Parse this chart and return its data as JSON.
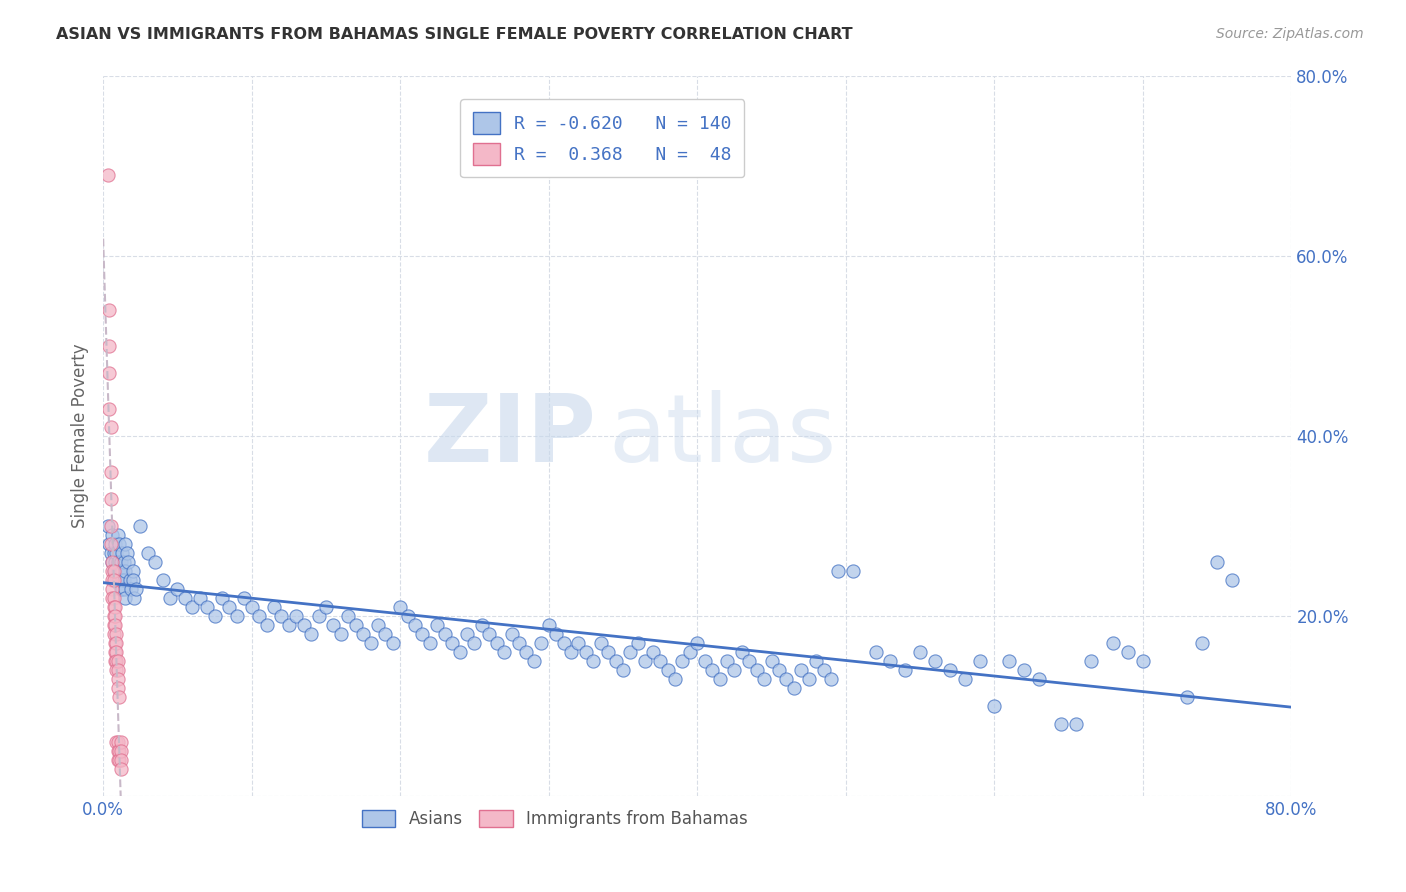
{
  "title": "ASIAN VS IMMIGRANTS FROM BAHAMAS SINGLE FEMALE POVERTY CORRELATION CHART",
  "source": "Source: ZipAtlas.com",
  "ylabel": "Single Female Poverty",
  "xlim": [
    0.0,
    0.8
  ],
  "ylim": [
    0.0,
    0.8
  ],
  "watermark_zip": "ZIP",
  "watermark_atlas": "atlas",
  "background_color": "#ffffff",
  "grid_color": "#d8dde6",
  "asian_scatter_color": "#aec6e8",
  "asian_edge_color": "#4472c4",
  "bahamas_scatter_color": "#f4b8c8",
  "bahamas_edge_color": "#e07090",
  "trendline_asian_color": "#4472c4",
  "trendline_bahamas_color": "#c8b8c8",
  "legend_color1": "#aec6e8",
  "legend_color2": "#f4b8c8",
  "legend_edge1": "#4472c4",
  "legend_edge2": "#e07090",
  "legend_text_color": "#4472c4",
  "tick_color": "#4472c4",
  "ylabel_color": "#666666",
  "title_color": "#333333",
  "source_color": "#999999",
  "bottom_legend_color": "#555555",
  "asian_points": [
    [
      0.003,
      0.3
    ],
    [
      0.004,
      0.28
    ],
    [
      0.005,
      0.27
    ],
    [
      0.006,
      0.29
    ],
    [
      0.006,
      0.26
    ],
    [
      0.007,
      0.27
    ],
    [
      0.007,
      0.25
    ],
    [
      0.008,
      0.28
    ],
    [
      0.008,
      0.26
    ],
    [
      0.008,
      0.25
    ],
    [
      0.009,
      0.27
    ],
    [
      0.009,
      0.24
    ],
    [
      0.01,
      0.29
    ],
    [
      0.01,
      0.26
    ],
    [
      0.01,
      0.25
    ],
    [
      0.01,
      0.24
    ],
    [
      0.011,
      0.28
    ],
    [
      0.011,
      0.25
    ],
    [
      0.011,
      0.24
    ],
    [
      0.012,
      0.26
    ],
    [
      0.012,
      0.25
    ],
    [
      0.012,
      0.23
    ],
    [
      0.013,
      0.27
    ],
    [
      0.013,
      0.25
    ],
    [
      0.013,
      0.24
    ],
    [
      0.013,
      0.23
    ],
    [
      0.014,
      0.26
    ],
    [
      0.014,
      0.24
    ],
    [
      0.015,
      0.28
    ],
    [
      0.015,
      0.25
    ],
    [
      0.015,
      0.23
    ],
    [
      0.015,
      0.22
    ],
    [
      0.016,
      0.27
    ],
    [
      0.017,
      0.26
    ],
    [
      0.018,
      0.24
    ],
    [
      0.019,
      0.23
    ],
    [
      0.02,
      0.25
    ],
    [
      0.02,
      0.24
    ],
    [
      0.021,
      0.22
    ],
    [
      0.022,
      0.23
    ],
    [
      0.025,
      0.3
    ],
    [
      0.03,
      0.27
    ],
    [
      0.035,
      0.26
    ],
    [
      0.04,
      0.24
    ],
    [
      0.045,
      0.22
    ],
    [
      0.05,
      0.23
    ],
    [
      0.055,
      0.22
    ],
    [
      0.06,
      0.21
    ],
    [
      0.065,
      0.22
    ],
    [
      0.07,
      0.21
    ],
    [
      0.075,
      0.2
    ],
    [
      0.08,
      0.22
    ],
    [
      0.085,
      0.21
    ],
    [
      0.09,
      0.2
    ],
    [
      0.095,
      0.22
    ],
    [
      0.1,
      0.21
    ],
    [
      0.105,
      0.2
    ],
    [
      0.11,
      0.19
    ],
    [
      0.115,
      0.21
    ],
    [
      0.12,
      0.2
    ],
    [
      0.125,
      0.19
    ],
    [
      0.13,
      0.2
    ],
    [
      0.135,
      0.19
    ],
    [
      0.14,
      0.18
    ],
    [
      0.145,
      0.2
    ],
    [
      0.15,
      0.21
    ],
    [
      0.155,
      0.19
    ],
    [
      0.16,
      0.18
    ],
    [
      0.165,
      0.2
    ],
    [
      0.17,
      0.19
    ],
    [
      0.175,
      0.18
    ],
    [
      0.18,
      0.17
    ],
    [
      0.185,
      0.19
    ],
    [
      0.19,
      0.18
    ],
    [
      0.195,
      0.17
    ],
    [
      0.2,
      0.21
    ],
    [
      0.205,
      0.2
    ],
    [
      0.21,
      0.19
    ],
    [
      0.215,
      0.18
    ],
    [
      0.22,
      0.17
    ],
    [
      0.225,
      0.19
    ],
    [
      0.23,
      0.18
    ],
    [
      0.235,
      0.17
    ],
    [
      0.24,
      0.16
    ],
    [
      0.245,
      0.18
    ],
    [
      0.25,
      0.17
    ],
    [
      0.255,
      0.19
    ],
    [
      0.26,
      0.18
    ],
    [
      0.265,
      0.17
    ],
    [
      0.27,
      0.16
    ],
    [
      0.275,
      0.18
    ],
    [
      0.28,
      0.17
    ],
    [
      0.285,
      0.16
    ],
    [
      0.29,
      0.15
    ],
    [
      0.295,
      0.17
    ],
    [
      0.3,
      0.19
    ],
    [
      0.305,
      0.18
    ],
    [
      0.31,
      0.17
    ],
    [
      0.315,
      0.16
    ],
    [
      0.32,
      0.17
    ],
    [
      0.325,
      0.16
    ],
    [
      0.33,
      0.15
    ],
    [
      0.335,
      0.17
    ],
    [
      0.34,
      0.16
    ],
    [
      0.345,
      0.15
    ],
    [
      0.35,
      0.14
    ],
    [
      0.355,
      0.16
    ],
    [
      0.36,
      0.17
    ],
    [
      0.365,
      0.15
    ],
    [
      0.37,
      0.16
    ],
    [
      0.375,
      0.15
    ],
    [
      0.38,
      0.14
    ],
    [
      0.385,
      0.13
    ],
    [
      0.39,
      0.15
    ],
    [
      0.395,
      0.16
    ],
    [
      0.4,
      0.17
    ],
    [
      0.405,
      0.15
    ],
    [
      0.41,
      0.14
    ],
    [
      0.415,
      0.13
    ],
    [
      0.42,
      0.15
    ],
    [
      0.425,
      0.14
    ],
    [
      0.43,
      0.16
    ],
    [
      0.435,
      0.15
    ],
    [
      0.44,
      0.14
    ],
    [
      0.445,
      0.13
    ],
    [
      0.45,
      0.15
    ],
    [
      0.455,
      0.14
    ],
    [
      0.46,
      0.13
    ],
    [
      0.465,
      0.12
    ],
    [
      0.47,
      0.14
    ],
    [
      0.475,
      0.13
    ],
    [
      0.48,
      0.15
    ],
    [
      0.485,
      0.14
    ],
    [
      0.49,
      0.13
    ],
    [
      0.495,
      0.25
    ],
    [
      0.505,
      0.25
    ],
    [
      0.52,
      0.16
    ],
    [
      0.53,
      0.15
    ],
    [
      0.54,
      0.14
    ],
    [
      0.55,
      0.16
    ],
    [
      0.56,
      0.15
    ],
    [
      0.57,
      0.14
    ],
    [
      0.58,
      0.13
    ],
    [
      0.59,
      0.15
    ],
    [
      0.6,
      0.1
    ],
    [
      0.61,
      0.15
    ],
    [
      0.62,
      0.14
    ],
    [
      0.63,
      0.13
    ],
    [
      0.645,
      0.08
    ],
    [
      0.655,
      0.08
    ],
    [
      0.665,
      0.15
    ],
    [
      0.68,
      0.17
    ],
    [
      0.69,
      0.16
    ],
    [
      0.7,
      0.15
    ],
    [
      0.73,
      0.11
    ],
    [
      0.74,
      0.17
    ],
    [
      0.75,
      0.26
    ],
    [
      0.76,
      0.24
    ]
  ],
  "bahamas_points": [
    [
      0.003,
      0.69
    ],
    [
      0.004,
      0.54
    ],
    [
      0.004,
      0.5
    ],
    [
      0.004,
      0.47
    ],
    [
      0.004,
      0.43
    ],
    [
      0.005,
      0.41
    ],
    [
      0.005,
      0.36
    ],
    [
      0.005,
      0.33
    ],
    [
      0.005,
      0.3
    ],
    [
      0.005,
      0.28
    ],
    [
      0.006,
      0.26
    ],
    [
      0.006,
      0.25
    ],
    [
      0.006,
      0.24
    ],
    [
      0.006,
      0.23
    ],
    [
      0.006,
      0.22
    ],
    [
      0.007,
      0.25
    ],
    [
      0.007,
      0.24
    ],
    [
      0.007,
      0.22
    ],
    [
      0.007,
      0.21
    ],
    [
      0.007,
      0.2
    ],
    [
      0.007,
      0.19
    ],
    [
      0.007,
      0.18
    ],
    [
      0.008,
      0.21
    ],
    [
      0.008,
      0.2
    ],
    [
      0.008,
      0.19
    ],
    [
      0.008,
      0.17
    ],
    [
      0.008,
      0.16
    ],
    [
      0.008,
      0.15
    ],
    [
      0.009,
      0.18
    ],
    [
      0.009,
      0.17
    ],
    [
      0.009,
      0.16
    ],
    [
      0.009,
      0.15
    ],
    [
      0.009,
      0.14
    ],
    [
      0.009,
      0.06
    ],
    [
      0.01,
      0.15
    ],
    [
      0.01,
      0.14
    ],
    [
      0.01,
      0.13
    ],
    [
      0.01,
      0.12
    ],
    [
      0.01,
      0.06
    ],
    [
      0.01,
      0.05
    ],
    [
      0.01,
      0.04
    ],
    [
      0.011,
      0.11
    ],
    [
      0.011,
      0.05
    ],
    [
      0.011,
      0.04
    ],
    [
      0.012,
      0.06
    ],
    [
      0.012,
      0.05
    ],
    [
      0.012,
      0.04
    ],
    [
      0.012,
      0.03
    ]
  ]
}
